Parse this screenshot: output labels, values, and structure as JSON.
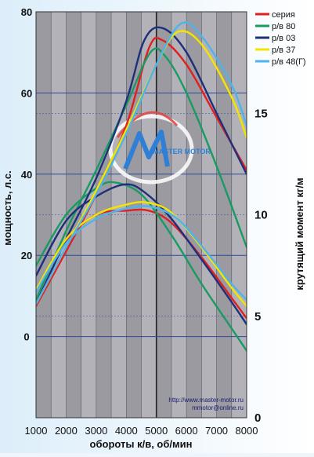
{
  "chart_data": {
    "type": "line",
    "xlabel": "обороты к/в, об/мин",
    "ylabel_left": "мощность, л.с.",
    "ylabel_right": "крутящий момент кг/м",
    "x_ticks": [
      1000,
      2000,
      3000,
      4000,
      5000,
      6000,
      7000,
      8000
    ],
    "y_left_ticks": [
      0,
      20,
      40,
      60,
      80
    ],
    "y_right_ticks": [
      0,
      5,
      10,
      15
    ],
    "xlim": [
      1000,
      8000
    ],
    "ylim_left": [
      -20,
      80
    ],
    "ylim_right": [
      0,
      20
    ],
    "grid": true,
    "legend_position": "top-right",
    "watermark": "http://www.master-motor.ru\nmmotor@online.ru",
    "logo_text": "MASTER MOTOR",
    "series": [
      {
        "name": "серия",
        "color": "#e02020",
        "power": [
          [
            1000,
            7.5
          ],
          [
            2000,
            21
          ],
          [
            3000,
            35
          ],
          [
            4000,
            52
          ],
          [
            4750,
            71
          ],
          [
            5200,
            73
          ],
          [
            6000,
            67
          ],
          [
            7000,
            54
          ],
          [
            8000,
            41
          ]
        ],
        "torque": [
          [
            1000,
            6.3
          ],
          [
            2000,
            8.7
          ],
          [
            3000,
            10.0
          ],
          [
            4000,
            10.2
          ],
          [
            4750,
            10.2
          ],
          [
            5500,
            9.6
          ],
          [
            6500,
            7.9
          ],
          [
            7500,
            5.9
          ],
          [
            8000,
            4.9
          ]
        ]
      },
      {
        "name": "р/в 80",
        "color": "#1a9a63",
        "power": [
          [
            1000,
            9
          ],
          [
            2000,
            26
          ],
          [
            3000,
            41
          ],
          [
            4000,
            57
          ],
          [
            4800,
            70
          ],
          [
            5300,
            69
          ],
          [
            6000,
            60
          ],
          [
            7000,
            42
          ],
          [
            8000,
            22
          ]
        ],
        "torque": [
          [
            1000,
            7.5
          ],
          [
            2000,
            10.0
          ],
          [
            3000,
            11.3
          ],
          [
            3600,
            11.6
          ],
          [
            4500,
            11.0
          ],
          [
            5500,
            9.0
          ],
          [
            6500,
            6.6
          ],
          [
            7500,
            4.4
          ],
          [
            8000,
            3.3
          ]
        ]
      },
      {
        "name": "р/в 03",
        "color": "#1f2f7a",
        "power": [
          [
            1000,
            8
          ],
          [
            2000,
            24
          ],
          [
            3000,
            39
          ],
          [
            4000,
            58
          ],
          [
            4600,
            73
          ],
          [
            5200,
            76
          ],
          [
            6000,
            70
          ],
          [
            7000,
            55
          ],
          [
            8000,
            40
          ]
        ],
        "torque": [
          [
            1000,
            7.0
          ],
          [
            2000,
            9.7
          ],
          [
            3000,
            10.9
          ],
          [
            4000,
            11.5
          ],
          [
            4700,
            11.0
          ],
          [
            5500,
            9.8
          ],
          [
            6500,
            7.8
          ],
          [
            7500,
            5.7
          ],
          [
            8000,
            4.6
          ]
        ]
      },
      {
        "name": "р/в 37",
        "color": "#f2e600",
        "power": [
          [
            1000,
            8
          ],
          [
            2000,
            22
          ],
          [
            3000,
            36
          ],
          [
            4000,
            51
          ],
          [
            5000,
            67
          ],
          [
            5700,
            75
          ],
          [
            6500,
            72
          ],
          [
            7500,
            59
          ],
          [
            8000,
            49
          ]
        ],
        "torque": [
          [
            1000,
            6.3
          ],
          [
            2000,
            8.8
          ],
          [
            3000,
            10.0
          ],
          [
            4000,
            10.5
          ],
          [
            4700,
            10.6
          ],
          [
            5500,
            10.1
          ],
          [
            6500,
            8.4
          ],
          [
            7500,
            6.4
          ],
          [
            8000,
            5.5
          ]
        ]
      },
      {
        "name": "р/в 48(Г)",
        "color": "#4fb3ea",
        "power": [
          [
            1000,
            8
          ],
          [
            2000,
            22
          ],
          [
            3000,
            35
          ],
          [
            4000,
            50
          ],
          [
            5000,
            67
          ],
          [
            5800,
            77
          ],
          [
            6500,
            74
          ],
          [
            7500,
            62
          ],
          [
            8000,
            52
          ]
        ],
        "torque": [
          [
            1000,
            6.2
          ],
          [
            2000,
            8.6
          ],
          [
            3000,
            9.8
          ],
          [
            4000,
            10.3
          ],
          [
            4800,
            10.4
          ],
          [
            5700,
            9.8
          ],
          [
            6700,
            8.1
          ],
          [
            7500,
            6.6
          ],
          [
            8000,
            5.8
          ]
        ]
      }
    ]
  }
}
